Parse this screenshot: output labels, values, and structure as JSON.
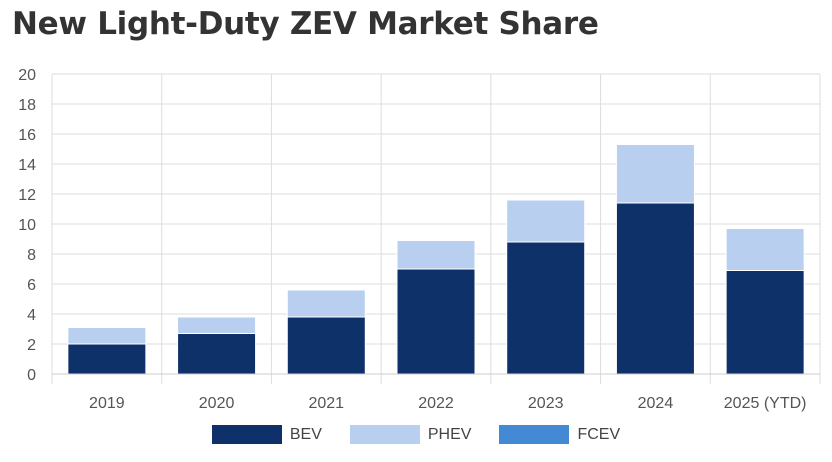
{
  "title": "New Light-Duty ZEV Market Share",
  "chart_data": {
    "type": "bar",
    "stacked": true,
    "title": "New Light-Duty ZEV Market Share",
    "xlabel": "",
    "ylabel": "",
    "categories": [
      "2019",
      "2020",
      "2021",
      "2022",
      "2023",
      "2024",
      "2025 (YTD)"
    ],
    "ylim": [
      0,
      20
    ],
    "yticks": [
      0,
      2,
      4,
      6,
      8,
      10,
      12,
      14,
      16,
      18,
      20
    ],
    "grid": true,
    "legend_position": "bottom",
    "series": [
      {
        "name": "BEV",
        "color": "#0f3169",
        "values": [
          2.0,
          2.7,
          3.8,
          7.0,
          8.8,
          11.4,
          6.9
        ]
      },
      {
        "name": "PHEV",
        "color": "#b9cfef",
        "values": [
          1.1,
          1.1,
          1.8,
          1.9,
          2.8,
          3.9,
          2.8
        ]
      },
      {
        "name": "FCEV",
        "color": "#4389d3",
        "values": [
          0,
          0,
          0,
          0,
          0,
          0,
          0
        ]
      }
    ]
  }
}
